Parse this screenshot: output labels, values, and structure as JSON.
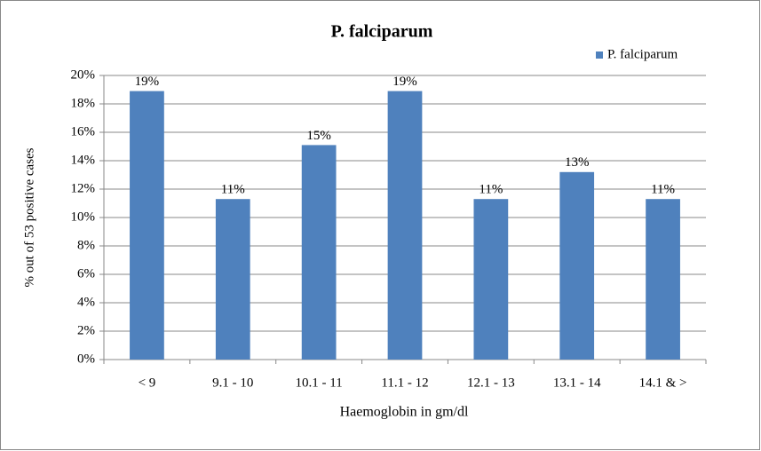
{
  "chart_data": {
    "type": "bar",
    "title": "P. falciparum",
    "x_label": "Haemoglobin in gm/dl",
    "y_label": "% out of 53 positive cases",
    "categories": [
      "< 9",
      "9.1 - 10",
      "10.1 - 11",
      "11.1 - 12",
      "12.1 - 13",
      "13.1 - 14",
      "14.1 & >"
    ],
    "series": [
      {
        "name": "P. falciparum",
        "color": "#4f81bd",
        "values": [
          18.9,
          11.3,
          15.1,
          18.9,
          11.3,
          13.2,
          11.3
        ],
        "value_labels": [
          "19%",
          "11%",
          "15%",
          "19%",
          "11%",
          "13%",
          "11%"
        ]
      }
    ],
    "ylim": [
      0,
      20
    ],
    "yticks": [
      {
        "value": 0,
        "label": "0%"
      },
      {
        "value": 2,
        "label": "2%"
      },
      {
        "value": 4,
        "label": "4%"
      },
      {
        "value": 6,
        "label": "6%"
      },
      {
        "value": 8,
        "label": "8%"
      },
      {
        "value": 10,
        "label": "10%"
      },
      {
        "value": 12,
        "label": "12%"
      },
      {
        "value": 14,
        "label": "14%"
      },
      {
        "value": 16,
        "label": "16%"
      },
      {
        "value": 18,
        "label": "18%"
      },
      {
        "value": 20,
        "label": "20%"
      }
    ],
    "grid": true,
    "legend": "top-right"
  }
}
